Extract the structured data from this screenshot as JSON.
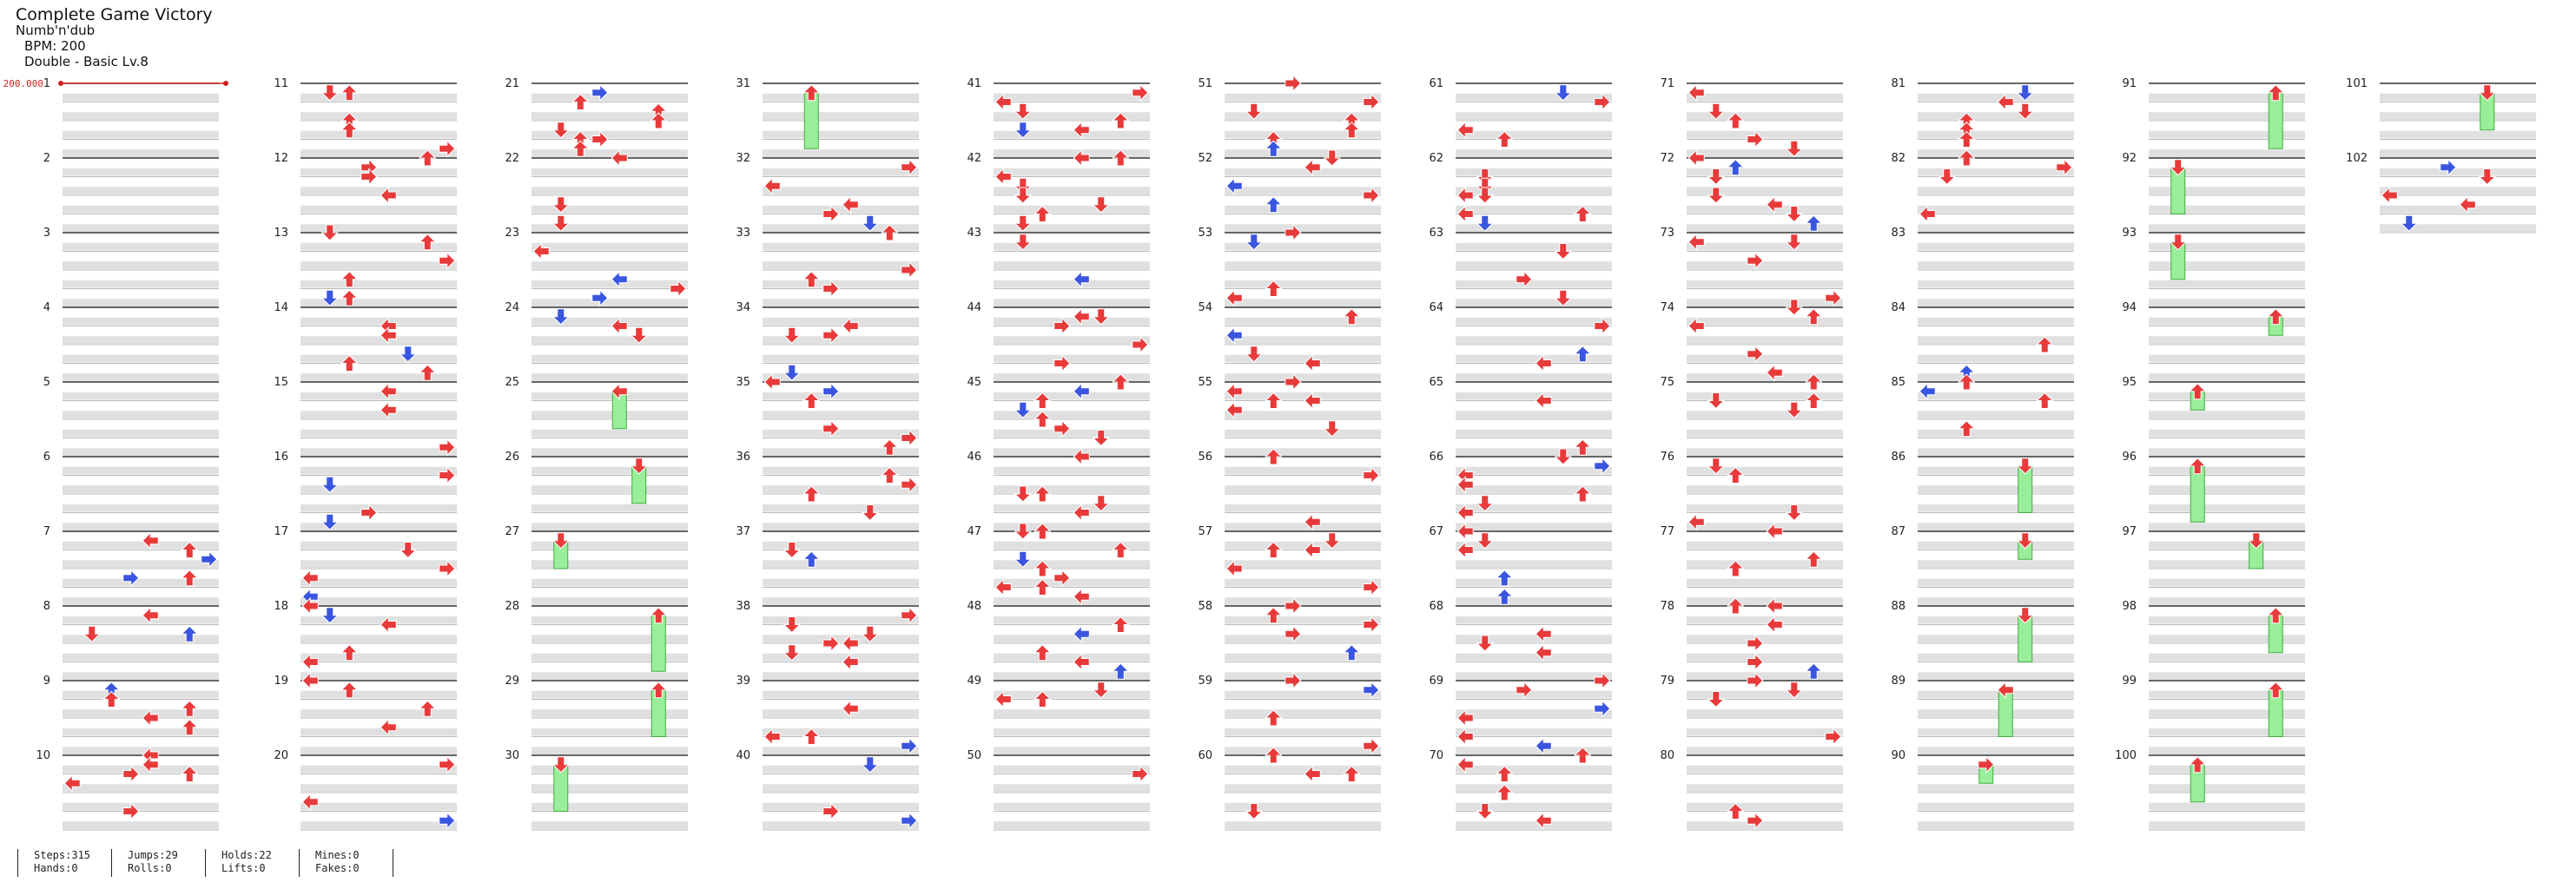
{
  "header": {
    "title": "Complete Game Victory",
    "artist": "Numb'n'dub",
    "bpm": "BPM: 200",
    "difficulty": "Double - Basic Lv.8"
  },
  "bpm_marker": "200.000",
  "colors": {
    "lane_gray": "#e0e0e0",
    "measure_line": "#333333",
    "red_arrow": "#e83a3a",
    "blue_arrow": "#3a55e0",
    "hold_green": "#99ee99",
    "hold_border": "#44aa44"
  },
  "measures": [
    "1",
    "2",
    "3",
    "4",
    "5",
    "6",
    "7",
    "8",
    "9",
    "10",
    "11",
    "12",
    "13",
    "14",
    "15",
    "16",
    "17",
    "18",
    "19",
    "20",
    "21",
    "22",
    "23",
    "24",
    "25",
    "26",
    "27",
    "28",
    "29",
    "30",
    "31",
    "32",
    "33",
    "34",
    "35",
    "36",
    "37",
    "38",
    "39",
    "40",
    "41",
    "42",
    "43",
    "44",
    "45",
    "46",
    "47",
    "48",
    "49",
    "50",
    "51",
    "52",
    "53",
    "54",
    "55",
    "56",
    "57",
    "58",
    "59",
    "60",
    "61",
    "62",
    "63",
    "64",
    "65",
    "66",
    "67",
    "68",
    "69",
    "70",
    "71",
    "72",
    "73",
    "74",
    "75",
    "76",
    "77",
    "78",
    "79",
    "80",
    "81",
    "82",
    "83",
    "84",
    "85",
    "86",
    "87",
    "88",
    "89",
    "90",
    "91",
    "92",
    "93",
    "94",
    "95",
    "96",
    "97",
    "98",
    "99",
    "100",
    "101",
    "102"
  ],
  "stats": [
    {
      "a": "Steps:315",
      "b": "Hands:0"
    },
    {
      "a": "Jumps:29",
      "b": "Rolls:0"
    },
    {
      "a": "Holds:22",
      "b": "Lifts:0"
    },
    {
      "a": "Mines:0",
      "b": "Fakes:0"
    }
  ]
}
